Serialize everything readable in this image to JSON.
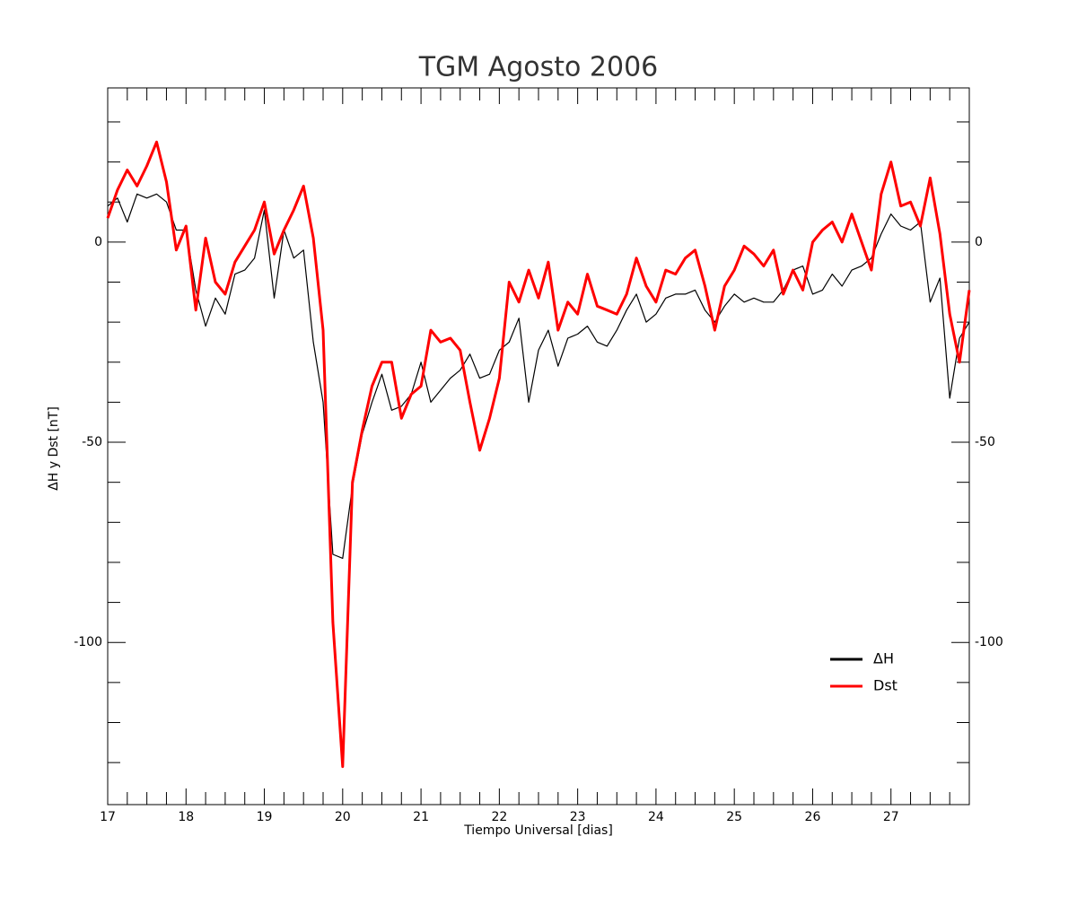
{
  "chart_data": {
    "type": "line",
    "title": "TGM Agosto 2006",
    "x_label": "Tiempo Universal [dias]",
    "y_label": "ΔH y Dst [nT]",
    "xlim": [
      17,
      28
    ],
    "ylim": [
      -140.5,
      38.5
    ],
    "xticks": [
      17,
      18,
      19,
      20,
      21,
      22,
      23,
      24,
      25,
      26,
      27
    ],
    "yticks": [
      -100,
      -50,
      0
    ],
    "x_minor_ticks": [
      17.25,
      17.5,
      17.75,
      18.25,
      18.5,
      18.75,
      19.25,
      19.5,
      19.75,
      20.25,
      20.5,
      20.75,
      21.25,
      21.5,
      21.75,
      22.25,
      22.5,
      22.75,
      23.25,
      23.5,
      23.75,
      24.25,
      24.5,
      24.75,
      25.25,
      25.5,
      25.75,
      26.25,
      26.5,
      26.75,
      27.25,
      27.5,
      27.75
    ],
    "y_minor_ticks": [
      -130,
      -120,
      -110,
      -90,
      -80,
      -70,
      -60,
      -40,
      -30,
      -20,
      -10,
      10,
      20,
      30
    ],
    "legend": "lower right",
    "x": [
      17,
      17.125,
      17.25,
      17.375,
      17.5,
      17.625,
      17.75,
      17.875,
      18,
      18.125,
      18.25,
      18.375,
      18.5,
      18.625,
      18.75,
      18.875,
      19,
      19.125,
      19.25,
      19.375,
      19.5,
      19.625,
      19.75,
      19.875,
      20,
      20.125,
      20.25,
      20.375,
      20.5,
      20.625,
      20.75,
      20.875,
      21,
      21.125,
      21.25,
      21.375,
      21.5,
      21.625,
      21.75,
      21.875,
      22,
      22.125,
      22.25,
      22.375,
      22.5,
      22.625,
      22.75,
      22.875,
      23,
      23.125,
      23.25,
      23.375,
      23.5,
      23.625,
      23.75,
      23.875,
      24,
      24.125,
      24.25,
      24.375,
      24.5,
      24.625,
      24.75,
      24.875,
      25,
      25.125,
      25.25,
      25.375,
      25.5,
      25.625,
      25.75,
      25.875,
      26,
      26.125,
      26.25,
      26.375,
      26.5,
      26.625,
      26.75,
      26.875,
      27,
      27.125,
      27.25,
      27.375,
      27.5,
      27.625,
      27.75,
      27.875,
      28
    ],
    "series": [
      {
        "name": "ΔH",
        "color": "#000000",
        "width": 1.2,
        "values": [
          9,
          11,
          5,
          12,
          11,
          12,
          10,
          3,
          3,
          -12,
          -21,
          -14,
          -18,
          -8,
          -7,
          -4,
          8,
          -14,
          3,
          -4,
          -2,
          -25,
          -40,
          -78,
          -79,
          -61,
          -48,
          -40,
          -33,
          -42,
          -41,
          -38,
          -30,
          -40,
          -37,
          -34,
          -32,
          -28,
          -34,
          -33,
          -27,
          -25,
          -19,
          -40,
          -27,
          -22,
          -31,
          -24,
          -23,
          -21,
          -25,
          -26,
          -22,
          -17,
          -13,
          -20,
          -18,
          -14,
          -13,
          -13,
          -12,
          -17,
          -20,
          -16,
          -13,
          -15,
          -14,
          -15,
          -15,
          -12,
          -7,
          -6,
          -13,
          -12,
          -8,
          -11,
          -7,
          -6,
          -4,
          2,
          7,
          4,
          3,
          5,
          -15,
          -9,
          -39,
          -24,
          -20
        ]
      },
      {
        "name": "Dst",
        "color": "#ff0000",
        "width": 3,
        "values": [
          6,
          13,
          18,
          14,
          19,
          25,
          15,
          -2,
          4,
          -17,
          1,
          -10,
          -13,
          -5,
          -1,
          3,
          10,
          -3,
          3,
          8,
          14,
          1,
          -22,
          -95,
          -131,
          -60,
          -47,
          -36,
          -30,
          -30,
          -44,
          -38,
          -36,
          -22,
          -25,
          -24,
          -27,
          -40,
          -52,
          -44,
          -34,
          -10,
          -15,
          -7,
          -14,
          -5,
          -22,
          -15,
          -18,
          -8,
          -16,
          -17,
          -18,
          -13,
          -4,
          -11,
          -15,
          -7,
          -8,
          -4,
          -2,
          -11,
          -22,
          -11,
          -7,
          -1,
          -3,
          -6,
          -2,
          -13,
          -7,
          -12,
          0,
          3,
          5,
          0,
          7,
          0,
          -7,
          12,
          20,
          9,
          10,
          4,
          16,
          2,
          -18,
          -30,
          -12
        ]
      }
    ]
  }
}
